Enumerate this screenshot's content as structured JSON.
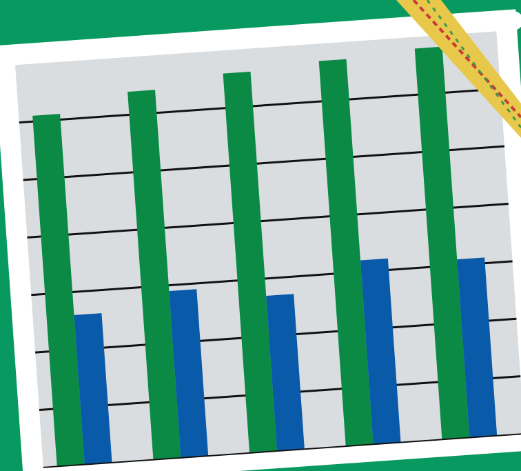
{
  "chart_data": {
    "type": "bar",
    "categories": [
      null,
      null,
      null,
      null,
      null
    ],
    "series": [
      {
        "color": "#0a8a45",
        "values": [
          6.1,
          6.4,
          6.6,
          6.7,
          6.8
        ]
      },
      {
        "color": "#0a5aaa",
        "values": [
          2.6,
          2.9,
          2.7,
          3.2,
          3.1
        ]
      }
    ],
    "ylim": [
      0,
      7
    ],
    "yticks": [
      1,
      2,
      3,
      4,
      5,
      6
    ],
    "grid": true
  }
}
